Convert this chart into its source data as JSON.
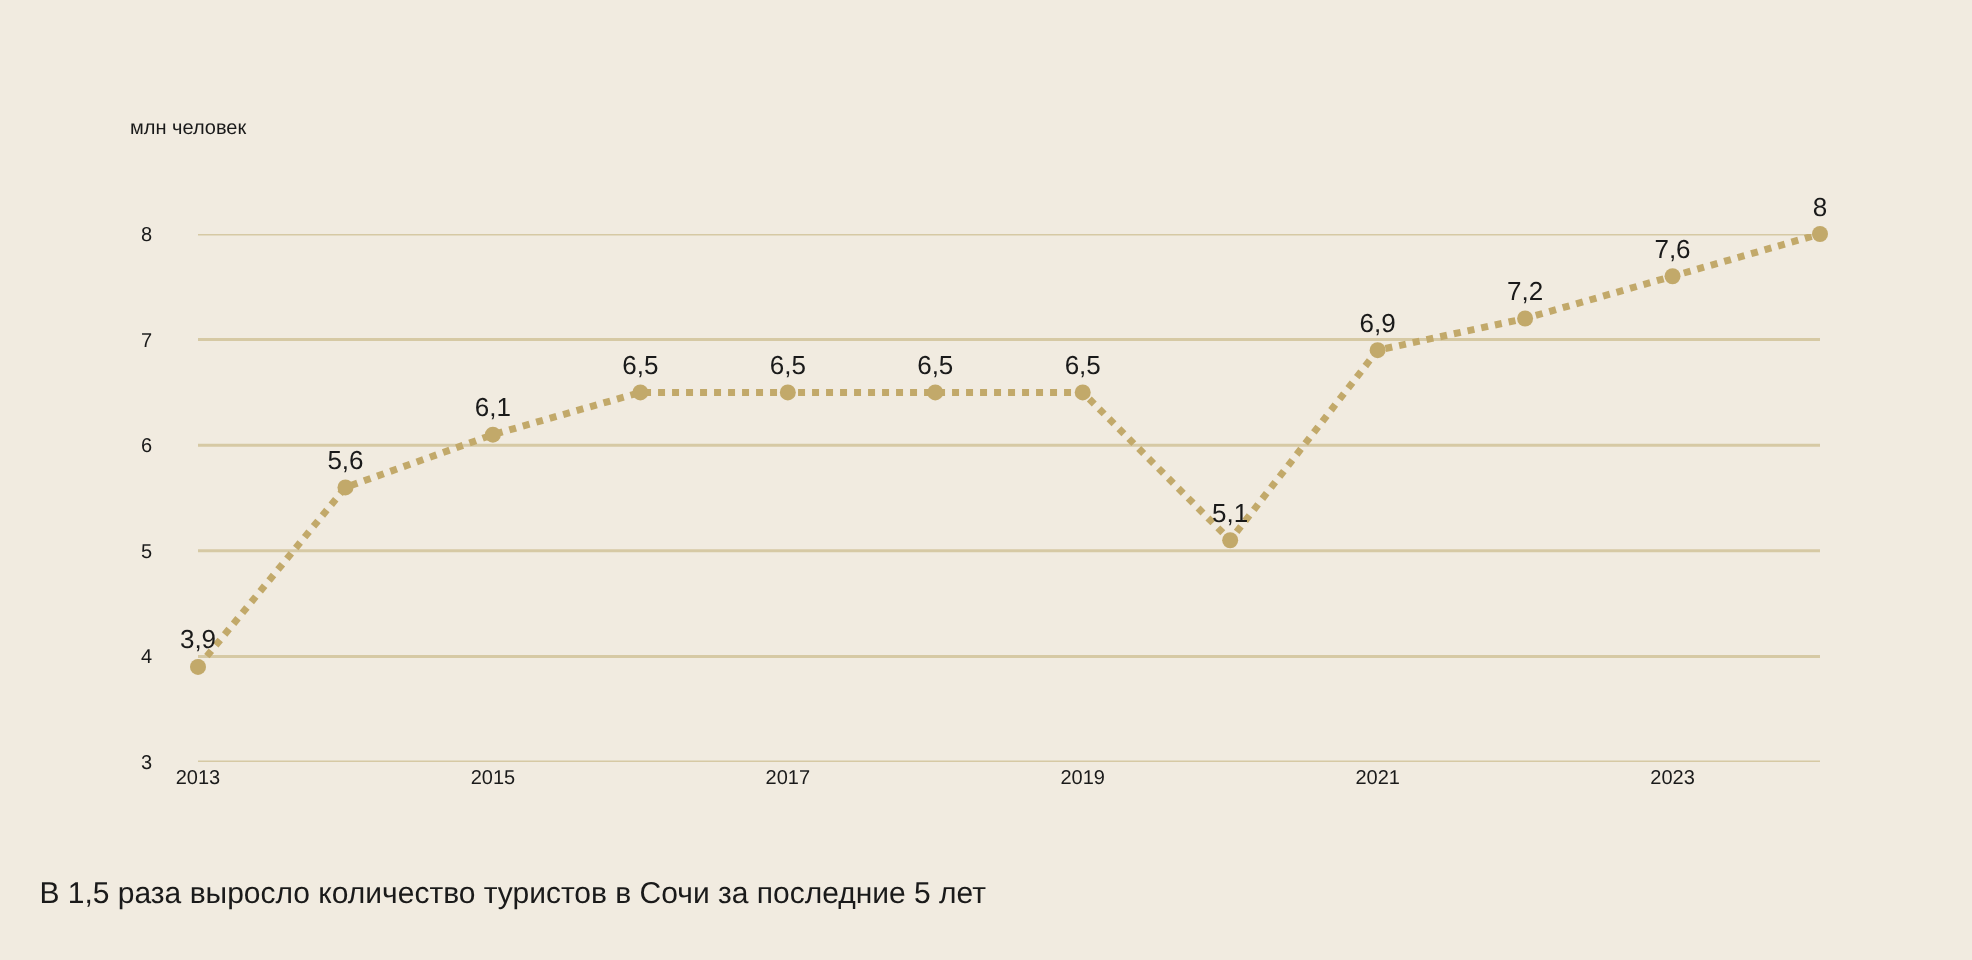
{
  "chart_data": {
    "type": "line",
    "title": "В 1,5 раза выросло количество туристов в Сочи за последние 5 лет",
    "ylabel": "млн человек",
    "x": [
      2013,
      2014,
      2015,
      2016,
      2017,
      2018,
      2019,
      2020,
      2021,
      2022,
      2023,
      2024
    ],
    "series": [
      {
        "color": "#c2a96a",
        "values": [
          3.9,
          5.6,
          6.1,
          6.5,
          6.5,
          6.5,
          6.5,
          5.1,
          6.9,
          7.2,
          7.6,
          8
        ],
        "value_labels": [
          "3,9",
          "5,6",
          "6,1",
          "6,5",
          "6,5",
          "6,5",
          "6,5",
          "5,1",
          "6,9",
          "7,2",
          "7,6",
          "8"
        ]
      }
    ],
    "xlim": [
      2013,
      2024
    ],
    "xticks": [
      2013,
      2015,
      2017,
      2019,
      2021,
      2023
    ],
    "ylim": [
      3,
      8
    ],
    "yticks": [
      3,
      4,
      5,
      6,
      7,
      8
    ],
    "grid": "y",
    "marker": "circle",
    "line_style": "dotted"
  }
}
